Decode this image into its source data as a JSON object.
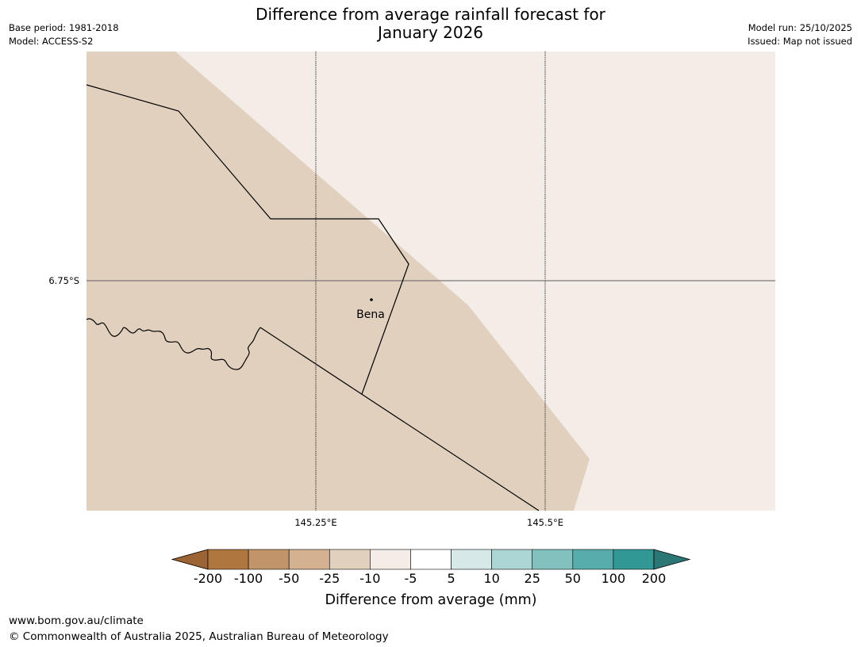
{
  "header": {
    "title_line1": "Difference from average rainfall forecast for",
    "title_line2": "January 2026",
    "base_period": "Base period: 1981-2018",
    "model": "Model: ACCESS-S2",
    "model_run": "Model run: 25/10/2025",
    "issued": "Issued: Map not issued"
  },
  "map": {
    "lat_label": "6.75°S",
    "lon_labels": [
      "145.25°E",
      "145.5°E"
    ],
    "place": {
      "name": "Bena"
    },
    "colors": {
      "region_a": "#e2d0bf",
      "region_b": "#f4ece6"
    }
  },
  "colorbar": {
    "title": "Difference from average (mm)",
    "labels": [
      "-200",
      "-100",
      "-50",
      "-25",
      "-10",
      "-5",
      "5",
      "10",
      "25",
      "50",
      "100",
      "200"
    ],
    "colors": [
      "#9c6334",
      "#b0763f",
      "#c29469",
      "#d4b291",
      "#e2d0bf",
      "#f4ece6",
      "#ffffff",
      "#d6e9e8",
      "#acd6d5",
      "#83c1be",
      "#58acab",
      "#319896",
      "#2a7776"
    ]
  },
  "footer": {
    "url": "www.bom.gov.au/climate",
    "copyright": "© Commonwealth of Australia 2025, Australian Bureau of Meteorology"
  }
}
